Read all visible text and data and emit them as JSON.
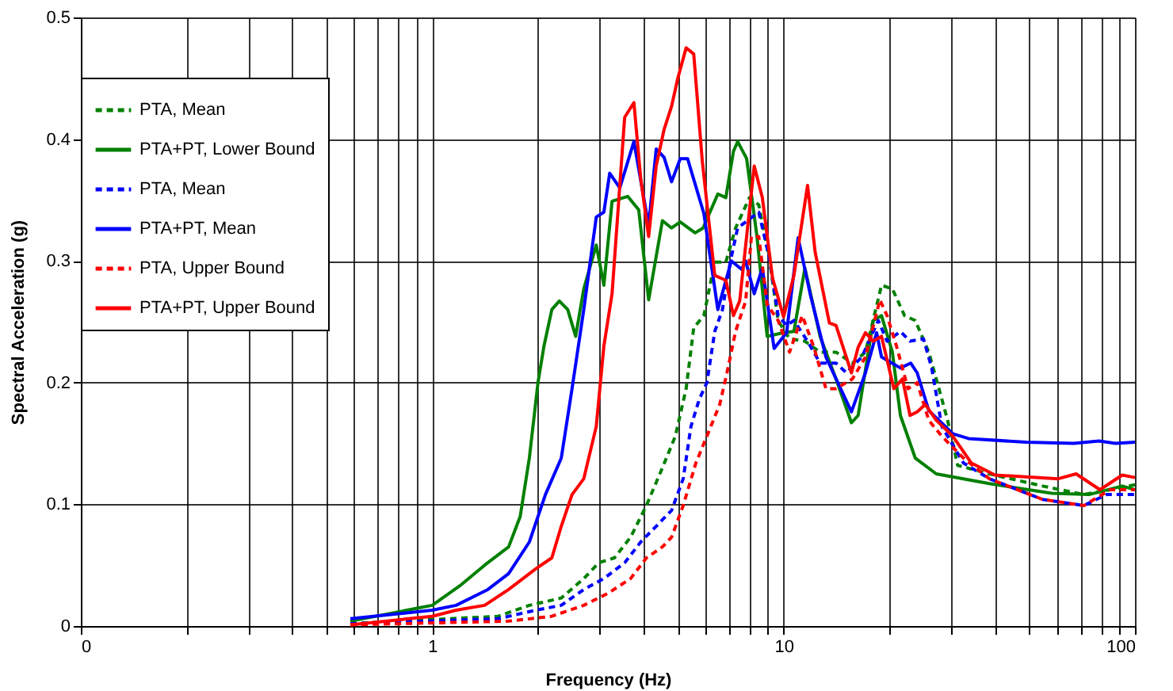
{
  "chart_data": {
    "type": "line",
    "xlabel": "Frequency (Hz)",
    "ylabel": "Spectral Acceleration (g)",
    "log": "x",
    "grid": true,
    "legend": "top left",
    "marker": "none",
    "xlim": [
      0.1,
      100
    ],
    "ylim": [
      0,
      0.5
    ],
    "xticks": [
      {
        "value": 0.1,
        "label": "0"
      },
      {
        "value": 0.2,
        "label": null
      },
      {
        "value": 0.3,
        "label": null
      },
      {
        "value": 0.4,
        "label": null
      },
      {
        "value": 0.5,
        "label": null
      },
      {
        "value": 0.6,
        "label": null
      },
      {
        "value": 0.7,
        "label": null
      },
      {
        "value": 0.8,
        "label": null
      },
      {
        "value": 0.9,
        "label": null
      },
      1,
      {
        "value": 2,
        "label": null
      },
      {
        "value": 3,
        "label": null
      },
      {
        "value": 4,
        "label": null
      },
      {
        "value": 5,
        "label": null
      },
      {
        "value": 6,
        "label": null
      },
      {
        "value": 7,
        "label": null
      },
      {
        "value": 8,
        "label": null
      },
      {
        "value": 9,
        "label": null
      },
      10,
      {
        "value": 20,
        "label": null
      },
      {
        "value": 30,
        "label": null
      },
      {
        "value": 40,
        "label": null
      },
      {
        "value": 50,
        "label": null
      },
      {
        "value": 60,
        "label": null
      },
      {
        "value": 70,
        "label": null
      },
      {
        "value": 80,
        "label": null
      },
      {
        "value": 90,
        "label": null
      },
      100
    ],
    "yticks": [
      0,
      0.1,
      0.2,
      0.3,
      0.4,
      0.5
    ],
    "series": [
      {
        "name": "PTA, Mean",
        "color": "#008000",
        "line_style": "dashed",
        "x": [
          0.585,
          1.54,
          1.89,
          2.33,
          2.7,
          2.98,
          3.3,
          3.67,
          4.07,
          4.52,
          4.92,
          5.28,
          5.55,
          5.93,
          6.37,
          6.85,
          7.3,
          8.0,
          8.5,
          9.1,
          9.65,
          10.4,
          11.5,
          12.7,
          14.1,
          15.7,
          17.1,
          19,
          20.4,
          22.1,
          23.7,
          25.9,
          27.2,
          29.3,
          31.3,
          38.5,
          54.6,
          71.6,
          85,
          100
        ],
        "values": [
          0.002,
          0.008,
          0.017,
          0.023,
          0.039,
          0.052,
          0.056,
          0.073,
          0.099,
          0.13,
          0.156,
          0.195,
          0.245,
          0.255,
          0.299,
          0.299,
          0.327,
          0.352,
          0.346,
          0.303,
          0.251,
          0.236,
          0.234,
          0.225,
          0.225,
          0.216,
          0.225,
          0.28,
          0.277,
          0.255,
          0.251,
          0.225,
          0.203,
          0.169,
          0.132,
          0.125,
          0.115,
          0.108,
          0.112,
          0.116
        ]
      },
      {
        "name": "PTA+PT, Lower Bound",
        "color": "#008000",
        "line_style": "solid",
        "x": [
          0.585,
          1.0,
          1.21,
          1.41,
          1.65,
          1.78,
          1.89,
          2.0,
          2.08,
          2.19,
          2.3,
          2.43,
          2.56,
          2.7,
          2.93,
          3.08,
          3.25,
          3.6,
          3.87,
          4.13,
          4.52,
          4.8,
          5.08,
          5.6,
          5.9,
          6.5,
          6.85,
          7.2,
          7.4,
          7.85,
          8.4,
          8.98,
          10,
          10.7,
          11.5,
          12.7,
          14.1,
          15.6,
          16.3,
          18.0,
          19,
          20.4,
          21.5,
          23.7,
          27.2,
          38.5,
          58,
          74,
          92,
          100
        ],
        "values": [
          0.004,
          0.017,
          0.034,
          0.05,
          0.065,
          0.09,
          0.138,
          0.2,
          0.23,
          0.26,
          0.267,
          0.26,
          0.238,
          0.277,
          0.313,
          0.28,
          0.349,
          0.353,
          0.342,
          0.268,
          0.333,
          0.327,
          0.332,
          0.323,
          0.327,
          0.355,
          0.352,
          0.39,
          0.398,
          0.384,
          0.32,
          0.238,
          0.241,
          0.242,
          0.294,
          0.238,
          0.203,
          0.167,
          0.173,
          0.251,
          0.255,
          0.225,
          0.173,
          0.138,
          0.125,
          0.117,
          0.109,
          0.108,
          0.115,
          0.112
        ]
      },
      {
        "name": "PTA, Mean",
        "color": "#0000ff",
        "line_style": "dashed",
        "x": [
          0.585,
          1.54,
          1.97,
          2.33,
          2.7,
          3.08,
          3.53,
          3.92,
          4.34,
          4.8,
          5.18,
          5.45,
          5.75,
          6.05,
          6.37,
          6.7,
          7.05,
          7.4,
          7.8,
          8.5,
          9.1,
          9.65,
          10.2,
          10.7,
          11.7,
          12.7,
          14.1,
          15.1,
          16.7,
          18.6,
          19.7,
          21.5,
          22.9,
          25,
          26.4,
          28.2,
          32.5,
          38.5,
          54.6,
          71.6,
          83,
          100
        ],
        "values": [
          0.002,
          0.006,
          0.013,
          0.017,
          0.03,
          0.039,
          0.052,
          0.069,
          0.082,
          0.095,
          0.121,
          0.164,
          0.186,
          0.2,
          0.242,
          0.26,
          0.299,
          0.327,
          0.332,
          0.34,
          0.303,
          0.255,
          0.247,
          0.251,
          0.234,
          0.216,
          0.216,
          0.208,
          0.221,
          0.251,
          0.234,
          0.242,
          0.234,
          0.236,
          0.212,
          0.164,
          0.134,
          0.121,
          0.104,
          0.099,
          0.108,
          0.108
        ]
      },
      {
        "name": "PTA+PT, Mean",
        "color": "#0000ff",
        "line_style": "solid",
        "x": [
          0.585,
          1.0,
          1.17,
          1.44,
          1.65,
          1.89,
          2.1,
          2.33,
          2.5,
          2.7,
          2.93,
          3.08,
          3.2,
          3.42,
          3.75,
          4.13,
          4.34,
          4.57,
          4.8,
          5.08,
          5.33,
          5.93,
          6.5,
          7.1,
          7.6,
          7.8,
          8.25,
          8.7,
          9.4,
          10.2,
          11.0,
          11.9,
          13.2,
          15.6,
          17.1,
          18.4,
          19,
          21.5,
          23,
          24,
          25.9,
          30.3,
          33.6,
          49,
          67,
          79,
          88,
          100
        ],
        "values": [
          0.006,
          0.013,
          0.017,
          0.03,
          0.043,
          0.069,
          0.108,
          0.138,
          0.195,
          0.26,
          0.336,
          0.34,
          0.372,
          0.36,
          0.398,
          0.329,
          0.392,
          0.385,
          0.365,
          0.384,
          0.384,
          0.339,
          0.26,
          0.3,
          0.293,
          0.3,
          0.273,
          0.294,
          0.228,
          0.241,
          0.319,
          0.273,
          0.221,
          0.176,
          0.208,
          0.241,
          0.221,
          0.212,
          0.216,
          0.208,
          0.177,
          0.158,
          0.154,
          0.151,
          0.15,
          0.152,
          0.15,
          0.151
        ]
      },
      {
        "name": "PTA, Upper Bound",
        "color": "#ff0000",
        "line_style": "dashed",
        "x": [
          0.585,
          1.65,
          2.19,
          2.7,
          3.17,
          3.67,
          4.07,
          4.52,
          4.8,
          5.18,
          5.63,
          6.05,
          6.58,
          6.9,
          7.3,
          7.8,
          8.1,
          8.5,
          8.98,
          9.65,
          10.4,
          11.3,
          12.2,
          13.2,
          14.1,
          15.7,
          17.1,
          18.8,
          19.7,
          21.0,
          22.6,
          24,
          25.9,
          28.2,
          32.5,
          38.5,
          54.6,
          71.6,
          85,
          100
        ],
        "values": [
          0.001,
          0.004,
          0.008,
          0.017,
          0.027,
          0.039,
          0.056,
          0.065,
          0.073,
          0.099,
          0.134,
          0.156,
          0.182,
          0.208,
          0.242,
          0.267,
          0.32,
          0.32,
          0.264,
          0.251,
          0.225,
          0.255,
          0.229,
          0.195,
          0.195,
          0.203,
          0.221,
          0.268,
          0.255,
          0.229,
          0.195,
          0.2,
          0.169,
          0.156,
          0.138,
          0.121,
          0.104,
          0.099,
          0.112,
          0.112
        ]
      },
      {
        "name": "PTA+PT, Upper Bound",
        "color": "#ff0000",
        "line_style": "solid",
        "x": [
          0.585,
          1.0,
          1.17,
          1.41,
          1.65,
          1.97,
          2.19,
          2.33,
          2.5,
          2.7,
          2.93,
          3.08,
          3.25,
          3.53,
          3.75,
          3.92,
          4.13,
          4.34,
          4.57,
          4.8,
          5.0,
          5.28,
          5.55,
          5.87,
          6.37,
          6.85,
          7.2,
          7.5,
          8.25,
          8.7,
          9.3,
          10,
          10.7,
          11.7,
          12.3,
          13.5,
          14.1,
          15.6,
          16.3,
          17.1,
          18,
          19,
          20.6,
          21.8,
          22.9,
          24,
          25.3,
          27.2,
          30.3,
          34.2,
          40,
          60.5,
          68,
          79.5,
          92,
          100
        ],
        "values": [
          0.001,
          0.008,
          0.013,
          0.017,
          0.03,
          0.047,
          0.056,
          0.082,
          0.108,
          0.121,
          0.164,
          0.23,
          0.273,
          0.418,
          0.43,
          0.368,
          0.32,
          0.378,
          0.408,
          0.427,
          0.45,
          0.475,
          0.47,
          0.382,
          0.288,
          0.284,
          0.255,
          0.267,
          0.378,
          0.352,
          0.286,
          0.254,
          0.288,
          0.362,
          0.307,
          0.249,
          0.247,
          0.208,
          0.229,
          0.241,
          0.234,
          0.238,
          0.195,
          0.203,
          0.173,
          0.176,
          0.182,
          0.169,
          0.156,
          0.134,
          0.124,
          0.121,
          0.125,
          0.112,
          0.124,
          0.122
        ]
      }
    ]
  }
}
